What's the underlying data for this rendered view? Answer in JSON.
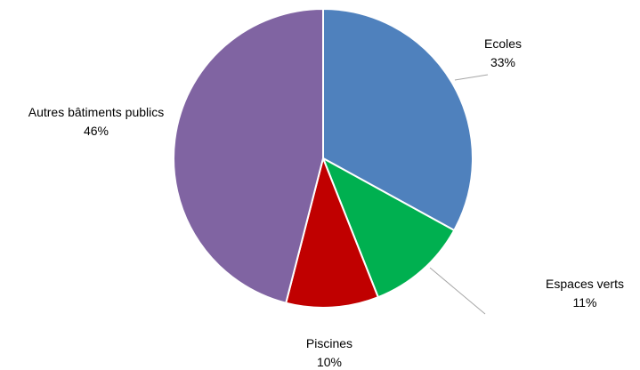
{
  "chart_data": {
    "type": "pie",
    "title": "",
    "slices": [
      {
        "label": "Ecoles",
        "value": 33,
        "value_label": "33%",
        "color": "#4F81BD"
      },
      {
        "label": "Espaces verts",
        "value": 11,
        "value_label": "11%",
        "color": "#00B050"
      },
      {
        "label": "Piscines",
        "value": 10,
        "value_label": "10%",
        "color": "#C00000"
      },
      {
        "label": "Autres bâtiments publics",
        "value": 46,
        "value_label": "46%",
        "color": "#8064A2"
      }
    ],
    "start": "12 o'clock",
    "direction": "clockwise",
    "legend": "none",
    "data_labels": "outside with leader lines"
  }
}
